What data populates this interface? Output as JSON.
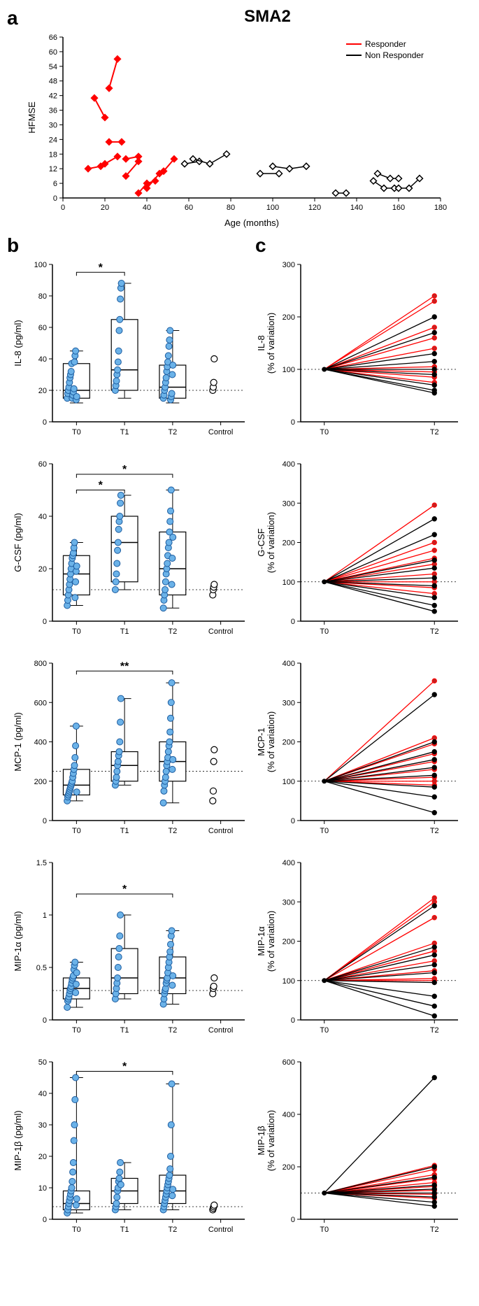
{
  "title": "SMA2",
  "labels": {
    "a": "a",
    "b": "b",
    "c": "c"
  },
  "colors": {
    "responder": "#ff0000",
    "nonresponder": "#000000",
    "dot_fill": "#6bb2e8",
    "dot_stroke": "#1a5a9e",
    "open_stroke": "#000000",
    "box_stroke": "#000000",
    "red_dot_fill": "#c82020",
    "black_dot_fill": "#000000"
  },
  "panelA": {
    "xlabel": "Age (months)",
    "ylabel": "HFMSE",
    "xlim": [
      0,
      180
    ],
    "ylim": [
      0,
      66
    ],
    "xticks": [
      0,
      20,
      40,
      60,
      80,
      100,
      120,
      140,
      160,
      180
    ],
    "yticks": [
      0,
      6,
      12,
      18,
      24,
      30,
      36,
      42,
      48,
      54,
      60,
      66
    ],
    "legend": [
      {
        "label": "Responder",
        "color": "#ff0000"
      },
      {
        "label": "Non Responder",
        "color": "#000000"
      }
    ],
    "responder_series": [
      [
        [
          12,
          12
        ],
        [
          18,
          13
        ]
      ],
      [
        [
          15,
          41
        ],
        [
          20,
          33
        ]
      ],
      [
        [
          22,
          45
        ],
        [
          26,
          57
        ]
      ],
      [
        [
          22,
          23
        ],
        [
          28,
          23
        ]
      ],
      [
        [
          20,
          14
        ],
        [
          26,
          17
        ]
      ],
      [
        [
          30,
          9
        ],
        [
          36,
          15
        ]
      ],
      [
        [
          30,
          16
        ],
        [
          36,
          17
        ]
      ],
      [
        [
          36,
          2
        ],
        [
          40,
          6
        ],
        [
          44,
          7
        ]
      ],
      [
        [
          40,
          4
        ],
        [
          46,
          10
        ]
      ],
      [
        [
          48,
          11
        ],
        [
          53,
          16
        ]
      ]
    ],
    "nonresponder_series": [
      [
        [
          58,
          14
        ],
        [
          65,
          15
        ]
      ],
      [
        [
          62,
          16
        ],
        [
          70,
          14
        ],
        [
          78,
          18
        ]
      ],
      [
        [
          94,
          10
        ],
        [
          103,
          10
        ]
      ],
      [
        [
          100,
          13
        ],
        [
          108,
          12
        ],
        [
          116,
          13
        ]
      ],
      [
        [
          130,
          2
        ],
        [
          135,
          2
        ]
      ],
      [
        [
          148,
          7
        ],
        [
          153,
          4
        ],
        [
          158,
          4
        ]
      ],
      [
        [
          150,
          10
        ],
        [
          156,
          8
        ],
        [
          160,
          8
        ]
      ],
      [
        [
          160,
          4
        ],
        [
          165,
          4
        ],
        [
          170,
          8
        ]
      ]
    ]
  },
  "panelB": {
    "xlabels": [
      "T0",
      "T1",
      "T2",
      "Control"
    ],
    "charts": [
      {
        "ylabel": "IL-8 (pg/ml)",
        "ylim": [
          0,
          100
        ],
        "yticks": [
          0,
          20,
          40,
          60,
          80,
          100
        ],
        "ref": 20,
        "boxes": [
          {
            "q1": 15,
            "med": 20,
            "q3": 37,
            "lo": 12,
            "hi": 45
          },
          {
            "q1": 20,
            "med": 33,
            "q3": 65,
            "lo": 15,
            "hi": 88
          },
          {
            "q1": 15,
            "med": 22,
            "q3": 36,
            "lo": 12,
            "hi": 58
          }
        ],
        "points": [
          [
            15,
            18,
            20,
            22,
            25,
            28,
            30,
            32,
            37,
            15,
            17,
            19,
            21,
            38,
            42,
            45,
            14,
            16
          ],
          [
            20,
            23,
            26,
            30,
            33,
            38,
            45,
            58,
            65,
            78,
            85,
            88
          ],
          [
            15,
            17,
            20,
            22,
            25,
            28,
            32,
            35,
            38,
            42,
            48,
            52,
            58,
            14,
            16,
            18,
            30,
            36
          ]
        ],
        "control": [
          20,
          22,
          25,
          40
        ],
        "sig": [
          {
            "from": 0,
            "to": 1,
            "text": "*",
            "y": 95
          }
        ]
      },
      {
        "ylabel": "G-CSF (pg/ml)",
        "ylim": [
          0,
          60
        ],
        "yticks": [
          0,
          20,
          40,
          60
        ],
        "ref": 12,
        "boxes": [
          {
            "q1": 10,
            "med": 18,
            "q3": 25,
            "lo": 6,
            "hi": 30
          },
          {
            "q1": 15,
            "med": 30,
            "q3": 40,
            "lo": 12,
            "hi": 48
          },
          {
            "q1": 10,
            "med": 20,
            "q3": 34,
            "lo": 5,
            "hi": 50
          }
        ],
        "points": [
          [
            6,
            8,
            10,
            12,
            14,
            16,
            18,
            20,
            22,
            24,
            25,
            26,
            28,
            30,
            9,
            15,
            19,
            21
          ],
          [
            12,
            15,
            18,
            22,
            27,
            30,
            35,
            38,
            40,
            45,
            48
          ],
          [
            5,
            8,
            10,
            12,
            15,
            18,
            20,
            22,
            25,
            28,
            30,
            34,
            38,
            42,
            50,
            14,
            24,
            32
          ]
        ],
        "control": [
          10,
          12,
          13,
          14
        ],
        "sig": [
          {
            "from": 0,
            "to": 1,
            "text": "*",
            "y": 50
          },
          {
            "from": 0,
            "to": 2,
            "text": "*",
            "y": 56
          }
        ]
      },
      {
        "ylabel": "MCP-1 (pg/ml)",
        "ylim": [
          0,
          800
        ],
        "yticks": [
          0,
          200,
          400,
          600,
          800
        ],
        "ref": 250,
        "boxes": [
          {
            "q1": 130,
            "med": 180,
            "q3": 260,
            "lo": 100,
            "hi": 480
          },
          {
            "q1": 200,
            "med": 280,
            "q3": 350,
            "lo": 180,
            "hi": 620
          },
          {
            "q1": 200,
            "med": 300,
            "q3": 400,
            "lo": 90,
            "hi": 700
          }
        ],
        "points": [
          [
            100,
            120,
            130,
            140,
            150,
            160,
            170,
            180,
            190,
            200,
            220,
            240,
            260,
            280,
            320,
            380,
            480,
            145
          ],
          [
            180,
            200,
            220,
            250,
            280,
            300,
            330,
            350,
            400,
            500,
            620
          ],
          [
            90,
            150,
            180,
            200,
            220,
            250,
            280,
            300,
            320,
            350,
            380,
            400,
            450,
            520,
            600,
            700,
            260,
            310
          ]
        ],
        "control": [
          100,
          150,
          300,
          360
        ],
        "sig": [
          {
            "from": 0,
            "to": 2,
            "text": "**",
            "y": 760
          }
        ]
      },
      {
        "ylabel": "MIP-1α (pg/ml)",
        "ylim": [
          0,
          1.5
        ],
        "yticks": [
          0,
          0.5,
          1.0,
          1.5
        ],
        "ref": 0.28,
        "boxes": [
          {
            "q1": 0.2,
            "med": 0.3,
            "q3": 0.4,
            "lo": 0.12,
            "hi": 0.55
          },
          {
            "q1": 0.25,
            "med": 0.4,
            "q3": 0.68,
            "lo": 0.2,
            "hi": 1.0
          },
          {
            "q1": 0.25,
            "med": 0.4,
            "q3": 0.6,
            "lo": 0.15,
            "hi": 0.85
          }
        ],
        "points": [
          [
            0.12,
            0.18,
            0.2,
            0.22,
            0.25,
            0.28,
            0.3,
            0.32,
            0.35,
            0.38,
            0.4,
            0.42,
            0.48,
            0.52,
            0.55,
            0.26,
            0.34,
            0.45
          ],
          [
            0.2,
            0.25,
            0.3,
            0.35,
            0.4,
            0.5,
            0.6,
            0.68,
            0.8,
            1.0
          ],
          [
            0.15,
            0.2,
            0.25,
            0.28,
            0.3,
            0.35,
            0.38,
            0.4,
            0.45,
            0.5,
            0.55,
            0.6,
            0.65,
            0.72,
            0.8,
            0.85,
            0.33,
            0.42
          ]
        ],
        "control": [
          0.25,
          0.3,
          0.32,
          0.4
        ],
        "sig": [
          {
            "from": 0,
            "to": 2,
            "text": "*",
            "y": 1.2
          }
        ]
      },
      {
        "ylabel": "MIP-1β (pg/ml)",
        "ylim": [
          0,
          50
        ],
        "yticks": [
          0,
          10,
          20,
          30,
          40,
          50
        ],
        "ref": 4,
        "boxes": [
          {
            "q1": 3,
            "med": 5,
            "q3": 9,
            "lo": 2,
            "hi": 45
          },
          {
            "q1": 5,
            "med": 9,
            "q3": 13,
            "lo": 3,
            "hi": 18
          },
          {
            "q1": 5,
            "med": 9,
            "q3": 14,
            "lo": 3,
            "hi": 43
          }
        ],
        "points": [
          [
            2,
            3,
            4,
            5,
            6,
            7,
            8,
            9,
            10,
            12,
            15,
            18,
            25,
            30,
            38,
            45,
            4.5,
            6.5
          ],
          [
            3,
            4,
            5,
            7,
            9,
            10,
            12,
            13,
            15,
            18,
            11
          ],
          [
            3,
            4,
            5,
            6,
            7,
            8,
            9,
            10,
            11,
            12,
            13,
            14,
            16,
            20,
            30,
            43,
            7.5,
            9.5
          ]
        ],
        "control": [
          3,
          3.5,
          4,
          4.5
        ],
        "sig": [
          {
            "from": 0,
            "to": 2,
            "text": "*",
            "y": 47
          }
        ]
      }
    ]
  },
  "panelC": {
    "xlabels": [
      "T0",
      "T2"
    ],
    "charts": [
      {
        "ylabel": "IL-8",
        "ysub": "(% of variation)",
        "ylim": [
          0,
          300
        ],
        "yticks": [
          0,
          100,
          200,
          300
        ],
        "ref": 100,
        "lines": [
          {
            "c": "r",
            "v": 240
          },
          {
            "c": "r",
            "v": 230
          },
          {
            "c": "r",
            "v": 180
          },
          {
            "c": "r",
            "v": 160
          },
          {
            "c": "r",
            "v": 140
          },
          {
            "c": "r",
            "v": 105
          },
          {
            "c": "r",
            "v": 95
          },
          {
            "c": "r",
            "v": 85
          },
          {
            "c": "r",
            "v": 75
          },
          {
            "c": "b",
            "v": 200
          },
          {
            "c": "b",
            "v": 170
          },
          {
            "c": "b",
            "v": 130
          },
          {
            "c": "b",
            "v": 115
          },
          {
            "c": "b",
            "v": 100
          },
          {
            "c": "b",
            "v": 90
          },
          {
            "c": "b",
            "v": 70
          },
          {
            "c": "b",
            "v": 60
          },
          {
            "c": "b",
            "v": 55
          }
        ]
      },
      {
        "ylabel": "G-CSF",
        "ysub": "(% of variation)",
        "ylim": [
          0,
          400
        ],
        "yticks": [
          0,
          100,
          200,
          300,
          400
        ],
        "ref": 100,
        "lines": [
          {
            "c": "r",
            "v": 295
          },
          {
            "c": "r",
            "v": 200
          },
          {
            "c": "r",
            "v": 180
          },
          {
            "c": "r",
            "v": 160
          },
          {
            "c": "r",
            "v": 145
          },
          {
            "c": "r",
            "v": 120
          },
          {
            "c": "r",
            "v": 100
          },
          {
            "c": "r",
            "v": 85
          },
          {
            "c": "r",
            "v": 70
          },
          {
            "c": "b",
            "v": 260
          },
          {
            "c": "b",
            "v": 220
          },
          {
            "c": "b",
            "v": 155
          },
          {
            "c": "b",
            "v": 135
          },
          {
            "c": "b",
            "v": 110
          },
          {
            "c": "b",
            "v": 90
          },
          {
            "c": "b",
            "v": 60
          },
          {
            "c": "b",
            "v": 40
          },
          {
            "c": "b",
            "v": 25
          }
        ]
      },
      {
        "ylabel": "MCP-1",
        "ysub": "(% of variation)",
        "ylim": [
          0,
          400
        ],
        "yticks": [
          0,
          100,
          200,
          300,
          400
        ],
        "ref": 100,
        "lines": [
          {
            "c": "r",
            "v": 355
          },
          {
            "c": "r",
            "v": 210
          },
          {
            "c": "r",
            "v": 195
          },
          {
            "c": "r",
            "v": 170
          },
          {
            "c": "r",
            "v": 150
          },
          {
            "c": "r",
            "v": 130
          },
          {
            "c": "r",
            "v": 110
          },
          {
            "c": "r",
            "v": 100
          },
          {
            "c": "r",
            "v": 90
          },
          {
            "c": "b",
            "v": 320
          },
          {
            "c": "b",
            "v": 200
          },
          {
            "c": "b",
            "v": 175
          },
          {
            "c": "b",
            "v": 155
          },
          {
            "c": "b",
            "v": 135
          },
          {
            "c": "b",
            "v": 115
          },
          {
            "c": "b",
            "v": 85
          },
          {
            "c": "b",
            "v": 60
          },
          {
            "c": "b",
            "v": 20
          }
        ]
      },
      {
        "ylabel": "MIP-1α",
        "ysub": "(% of variation)",
        "ylim": [
          0,
          400
        ],
        "yticks": [
          0,
          100,
          200,
          300,
          400
        ],
        "ref": 100,
        "lines": [
          {
            "c": "r",
            "v": 310
          },
          {
            "c": "r",
            "v": 300
          },
          {
            "c": "r",
            "v": 260
          },
          {
            "c": "r",
            "v": 195
          },
          {
            "c": "r",
            "v": 175
          },
          {
            "c": "r",
            "v": 150
          },
          {
            "c": "r",
            "v": 125
          },
          {
            "c": "r",
            "v": 100
          },
          {
            "c": "r",
            "v": 105
          },
          {
            "c": "b",
            "v": 290
          },
          {
            "c": "b",
            "v": 185
          },
          {
            "c": "b",
            "v": 165
          },
          {
            "c": "b",
            "v": 140
          },
          {
            "c": "b",
            "v": 120
          },
          {
            "c": "b",
            "v": 95
          },
          {
            "c": "b",
            "v": 60
          },
          {
            "c": "b",
            "v": 35
          },
          {
            "c": "b",
            "v": 10
          }
        ]
      },
      {
        "ylabel": "MIP-1β",
        "ysub": "(% of variation)",
        "ylim": [
          0,
          600
        ],
        "yticks": [
          0,
          200,
          400,
          600
        ],
        "ref": 100,
        "lines": [
          {
            "c": "r",
            "v": 205
          },
          {
            "c": "r",
            "v": 190
          },
          {
            "c": "r",
            "v": 170
          },
          {
            "c": "r",
            "v": 155
          },
          {
            "c": "r",
            "v": 140
          },
          {
            "c": "r",
            "v": 125
          },
          {
            "c": "r",
            "v": 110
          },
          {
            "c": "r",
            "v": 95
          },
          {
            "c": "r",
            "v": 80
          },
          {
            "c": "b",
            "v": 540
          },
          {
            "c": "b",
            "v": 200
          },
          {
            "c": "b",
            "v": 160
          },
          {
            "c": "b",
            "v": 130
          },
          {
            "c": "b",
            "v": 115
          },
          {
            "c": "b",
            "v": 100
          },
          {
            "c": "b",
            "v": 85
          },
          {
            "c": "b",
            "v": 65
          },
          {
            "c": "b",
            "v": 50
          }
        ]
      }
    ]
  }
}
